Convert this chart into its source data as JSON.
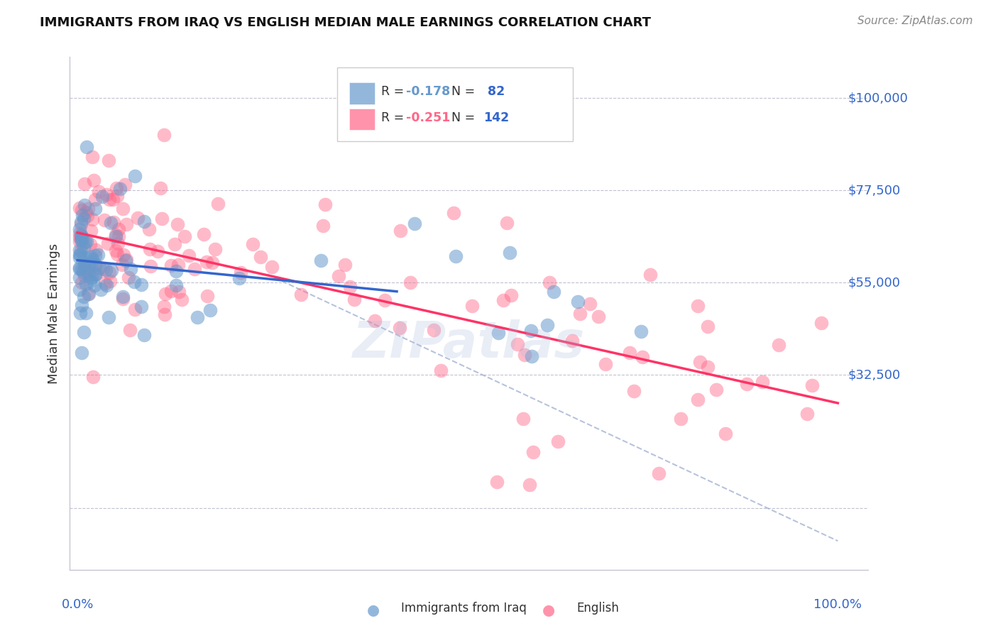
{
  "title": "IMMIGRANTS FROM IRAQ VS ENGLISH MEDIAN MALE EARNINGS CORRELATION CHART",
  "source": "Source: ZipAtlas.com",
  "ylabel": "Median Male Earnings",
  "color_blue": "#6699CC",
  "color_pink": "#FF6688",
  "color_blue_dark": "#3366CC",
  "color_pink_dark": "#FF3366",
  "watermark": "ZIPatlas"
}
